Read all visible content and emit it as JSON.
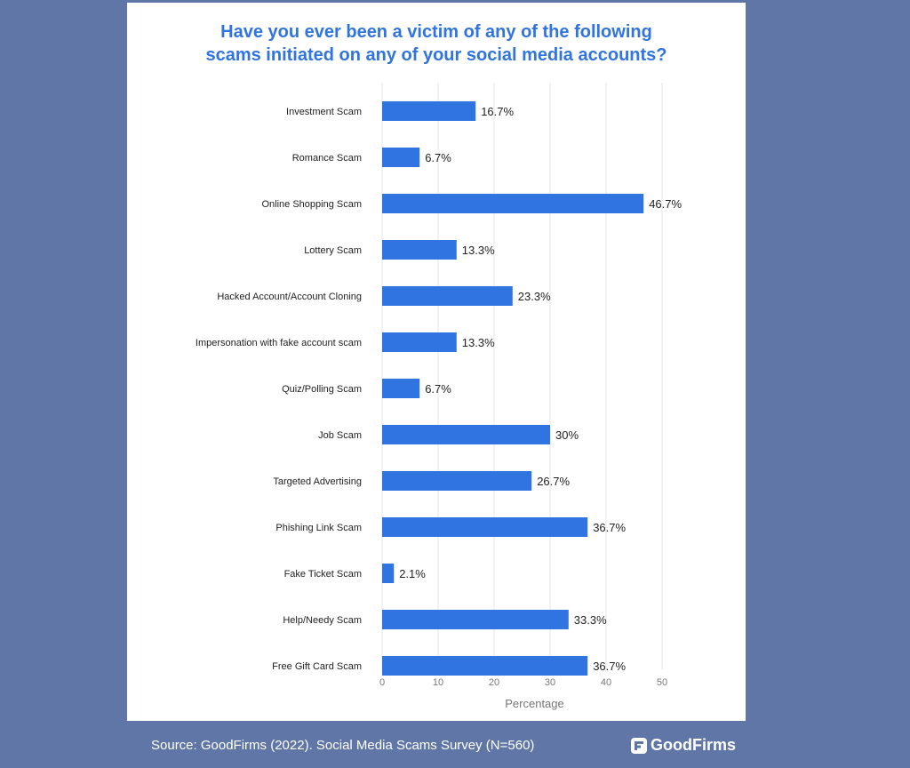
{
  "chart_data": {
    "type": "bar",
    "orientation": "horizontal",
    "title_line1": "Have you ever been a victim of any of the following",
    "title_line2": "scams initiated on any of your social media accounts?",
    "xlabel": "Percentage",
    "xlim": [
      0,
      50
    ],
    "xticks": [
      0,
      10,
      20,
      30,
      40,
      50
    ],
    "grid": true,
    "bar_color": "#2f74e0",
    "categories": [
      "Investment Scam",
      "Romance Scam",
      "Online Shopping Scam",
      "Lottery Scam",
      "Hacked Account/Account Cloning",
      "Impersonation with fake account scam",
      "Quiz/Polling Scam",
      "Job Scam",
      "Targeted Advertising",
      "Phishing Link Scam",
      "Fake Ticket Scam",
      "Help/Needy Scam",
      "Free Gift Card Scam"
    ],
    "values": [
      16.7,
      6.7,
      46.7,
      13.3,
      23.3,
      13.3,
      6.7,
      30,
      26.7,
      36.7,
      2.1,
      33.3,
      36.7
    ],
    "data_labels": [
      "16.7%",
      "6.7%",
      "46.7%",
      "13.3%",
      "23.3%",
      "13.3%",
      "6.7%",
      "30%",
      "26.7%",
      "36.7%",
      "2.1%",
      "33.3%",
      "36.7%"
    ]
  },
  "footer": {
    "source": "Source: GoodFirms (2022). Social Media Scams Survey (N=560)",
    "brand": "GoodFirms"
  },
  "colors": {
    "background": "#5f76a6",
    "accent": "#2f74e0"
  }
}
